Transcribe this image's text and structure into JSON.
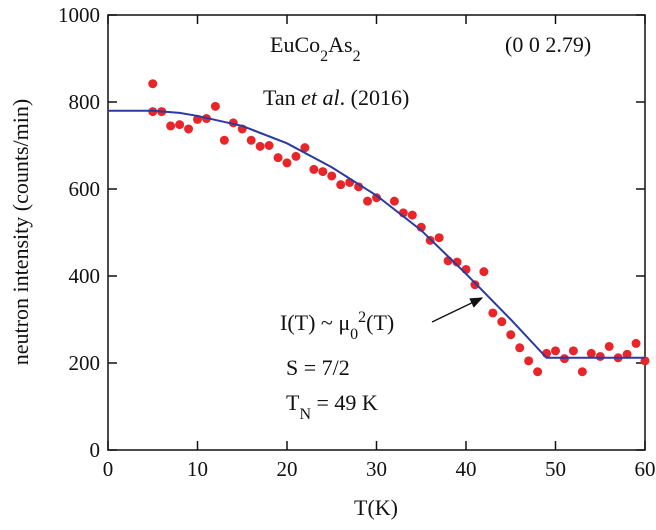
{
  "chart_data": {
    "type": "scatter",
    "xlabel": "T(K)",
    "ylabel": "neutron intensity (counts/min)",
    "xlim": [
      0,
      60
    ],
    "xticks": [
      0,
      10,
      20,
      30,
      40,
      50,
      60
    ],
    "ylim": [
      0,
      1000
    ],
    "yticks": [
      0,
      200,
      400,
      600,
      800,
      1000
    ],
    "series": [
      {
        "kind": "points",
        "color": "#e8262a",
        "x": [
          5,
          5,
          6,
          7,
          8,
          9,
          10,
          11,
          12,
          13,
          14,
          15,
          16,
          17,
          18,
          19,
          20,
          21,
          22,
          23,
          24,
          25,
          26,
          27,
          28,
          29,
          30,
          32,
          33,
          34,
          35,
          36,
          37,
          38,
          39,
          40,
          41,
          42,
          43,
          44,
          45,
          46,
          47,
          48,
          49,
          50,
          51,
          52,
          53,
          54,
          55,
          56,
          57,
          58,
          59,
          60
        ],
        "values": [
          842,
          778,
          778,
          745,
          748,
          738,
          760,
          762,
          790,
          712,
          752,
          738,
          712,
          698,
          700,
          672,
          660,
          675,
          695,
          645,
          640,
          630,
          610,
          615,
          605,
          572,
          580,
          572,
          545,
          540,
          512,
          482,
          488,
          435,
          432,
          415,
          380,
          410,
          315,
          295,
          265,
          235,
          205,
          180,
          222,
          228,
          210,
          228,
          180,
          222,
          215,
          238,
          212,
          220,
          245,
          205
        ]
      },
      {
        "kind": "line",
        "color": "#2b3a9e",
        "x": [
          0,
          5,
          8,
          10,
          15,
          20,
          25,
          30,
          35,
          40,
          45,
          49,
          60
        ],
        "values": [
          780,
          780,
          775,
          768,
          745,
          705,
          650,
          585,
          505,
          405,
          300,
          212,
          212
        ]
      }
    ],
    "annotations": [
      {
        "parts": [
          {
            "text": "EuCo"
          },
          {
            "text": "2",
            "baseline": "sub"
          },
          {
            "text": "As"
          },
          {
            "text": "2",
            "baseline": "sub"
          }
        ]
      },
      {
        "parts": [
          {
            "text": "(0 0 2.79)"
          }
        ]
      },
      {
        "parts": [
          {
            "text": "Tan "
          },
          {
            "text": "et al",
            "style": "italic"
          },
          {
            "text": ". (2016)"
          }
        ]
      },
      {
        "parts": [
          {
            "text": "I(T) ~ μ"
          },
          {
            "text": "0",
            "baseline": "sub"
          },
          {
            "text": "2",
            "baseline": "super"
          },
          {
            "text": "(T)"
          }
        ]
      },
      {
        "parts": [
          {
            "text": "S = 7/2"
          }
        ]
      },
      {
        "parts": [
          {
            "text": "T"
          },
          {
            "text": "N",
            "baseline": "sub"
          },
          {
            "text": " = 49 K"
          }
        ]
      }
    ]
  }
}
